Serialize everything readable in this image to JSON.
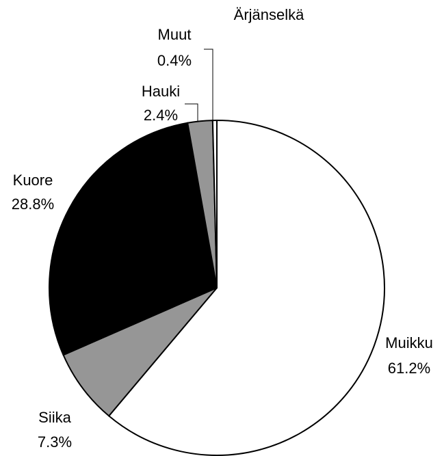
{
  "chart_data": {
    "type": "pie",
    "title": "Ärjänselkä",
    "categories": [
      "Muikku",
      "Siika",
      "Kuore",
      "Hauki",
      "Muut"
    ],
    "values": [
      61.2,
      7.3,
      28.8,
      2.4,
      0.4
    ],
    "value_labels": [
      "61.2%",
      "7.3%",
      "28.8%",
      "2.4%",
      "0.4%"
    ],
    "colors": [
      "#ffffff",
      "#969696",
      "#000000",
      "#969696",
      "#ffffff"
    ]
  }
}
